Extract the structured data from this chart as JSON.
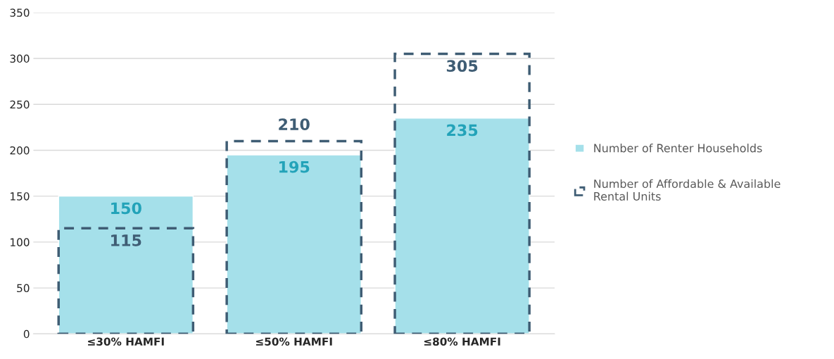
{
  "chart_data": {
    "type": "bar",
    "categories": [
      "≤30% HAMFI",
      "≤50% HAMFI",
      "≤80% HAMFI"
    ],
    "series": [
      {
        "name": "Number of Renter Households",
        "color": "#a5e0ea",
        "values": [
          150,
          195,
          235
        ]
      },
      {
        "name": "Number of Affordable & Available Rental Units",
        "color": "#3f5d74",
        "line_style": "dashed",
        "values": [
          115,
          210,
          305
        ]
      }
    ],
    "ylim": [
      0,
      350
    ],
    "yticks": [
      0,
      50,
      100,
      150,
      200,
      250,
      300,
      350
    ],
    "grid": "y",
    "legend": "right",
    "data_labels": true
  }
}
